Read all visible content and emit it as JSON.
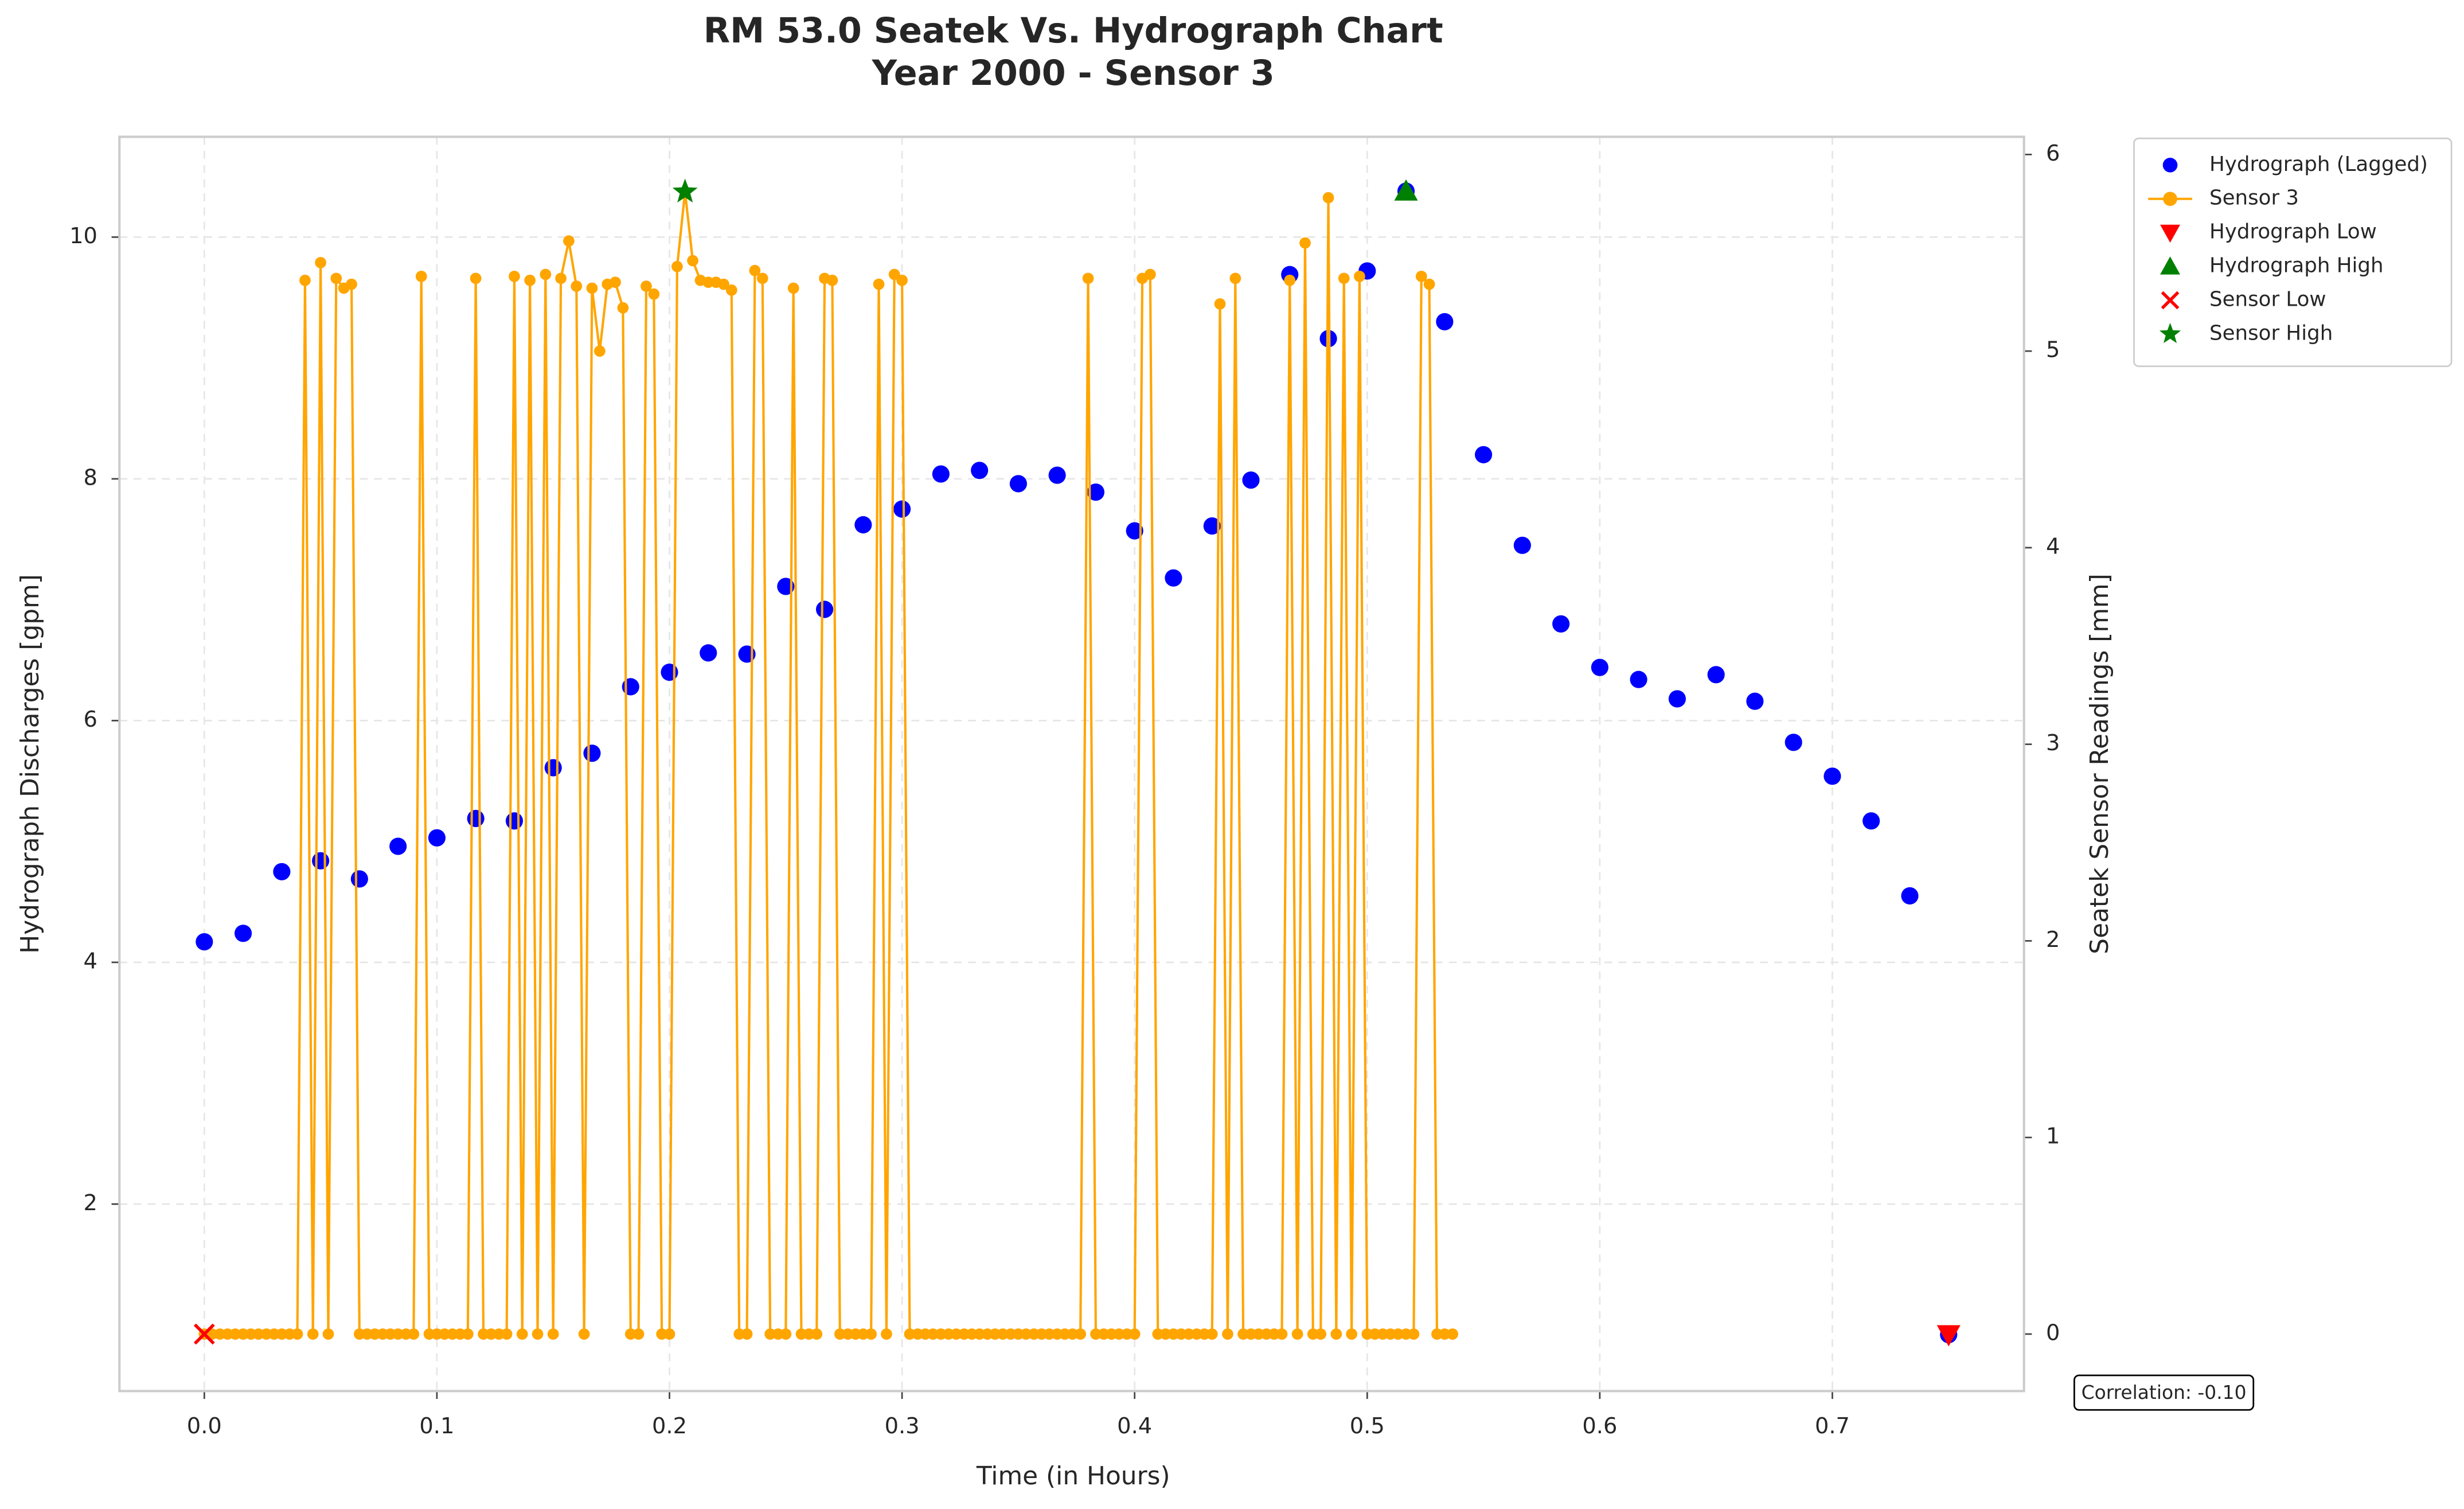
{
  "chart_data": {
    "type": "line",
    "title": "RM 53.0 Seatek Vs. Hydrograph Chart",
    "subtitle": "Year 2000 - Sensor 3",
    "x_label": "Time (in Hours)",
    "y_label": "Hydrograph Discharges [gpm]",
    "y2_label": "Seatek Sensor Readings [mm]",
    "annotation": "Correlation: -0.10",
    "xlim": [
      -0.0365,
      0.7824
    ],
    "ylim": [
      0.453,
      10.83
    ],
    "y2lim": [
      -0.29,
      6.09
    ],
    "xticks": [
      {
        "value": 0,
        "label": "0.0"
      },
      0.1,
      0.2,
      0.3,
      0.4,
      0.5,
      0.6,
      0.7
    ],
    "yticks": [
      2,
      4,
      6,
      8,
      10
    ],
    "y2ticks": [
      0,
      1,
      2,
      3,
      4,
      5,
      6
    ],
    "grid": true,
    "legend": "outside-right",
    "series": [
      {
        "name": "Hydrograph (Lagged)",
        "color": "#0000ff",
        "marker": "circle",
        "line": false,
        "axis": "y",
        "x": [
          0,
          0.0167,
          0.0333,
          0.05,
          0.0667,
          0.0833,
          0.1,
          0.1167,
          0.1333,
          0.15,
          0.1667,
          0.1833,
          0.2,
          0.2167,
          0.2333,
          0.25,
          0.2667,
          0.2833,
          0.3,
          0.3167,
          0.3333,
          0.35,
          0.3667,
          0.3833,
          0.4,
          0.4167,
          0.4333,
          0.45,
          0.4667,
          0.4833,
          0.5,
          0.5167,
          0.5333,
          0.55,
          0.5667,
          0.5833,
          0.6,
          0.6167,
          0.6333,
          0.65,
          0.6667,
          0.6833,
          0.7,
          0.7167,
          0.7333,
          0.75
        ],
        "values": [
          4.17,
          4.24,
          4.75,
          4.84,
          4.69,
          4.96,
          5.03,
          5.19,
          5.17,
          5.61,
          5.73,
          6.28,
          6.4,
          6.56,
          6.55,
          7.11,
          6.92,
          7.62,
          7.75,
          8.04,
          8.07,
          7.96,
          8.03,
          7.89,
          7.57,
          7.18,
          7.61,
          7.99,
          9.69,
          9.16,
          9.72,
          10.38,
          9.3,
          8.2,
          7.45,
          6.8,
          6.44,
          6.34,
          6.18,
          6.38,
          6.16,
          5.82,
          5.54,
          5.17,
          4.55,
          0.92
        ]
      },
      {
        "name": "Sensor 3",
        "color": "#ffa500",
        "marker": "circle",
        "line": true,
        "axis": "y2",
        "x": [
          0,
          0.0033,
          0.0067,
          0.01,
          0.0133,
          0.0167,
          0.02,
          0.0233,
          0.0267,
          0.03,
          0.0333,
          0.0367,
          0.04,
          0.0433,
          0.0467,
          0.05,
          0.0533,
          0.0567,
          0.06,
          0.0633,
          0.0667,
          0.07,
          0.0733,
          0.0767,
          0.08,
          0.0833,
          0.0867,
          0.09,
          0.0933,
          0.0967,
          0.1,
          0.1033,
          0.1067,
          0.11,
          0.1133,
          0.1167,
          0.12,
          0.1233,
          0.1267,
          0.13,
          0.1333,
          0.1367,
          0.14,
          0.1433,
          0.1467,
          0.15,
          0.1533,
          0.1567,
          0.16,
          0.1633,
          0.1667,
          0.17,
          0.1733,
          0.1767,
          0.18,
          0.1833,
          0.1867,
          0.19,
          0.1933,
          0.1967,
          0.2,
          0.2033,
          0.2067,
          0.21,
          0.2133,
          0.2167,
          0.22,
          0.2233,
          0.2267,
          0.23,
          0.2333,
          0.2367,
          0.24,
          0.2433,
          0.2467,
          0.25,
          0.2533,
          0.2567,
          0.26,
          0.2633,
          0.2667,
          0.27,
          0.2733,
          0.2767,
          0.28,
          0.2833,
          0.2867,
          0.29,
          0.2933,
          0.2967,
          0.3,
          0.3033,
          0.3067,
          0.31,
          0.3133,
          0.3167,
          0.32,
          0.3233,
          0.3267,
          0.33,
          0.3333,
          0.3367,
          0.34,
          0.3433,
          0.3467,
          0.35,
          0.3533,
          0.3567,
          0.36,
          0.3633,
          0.3667,
          0.37,
          0.3733,
          0.3767,
          0.38,
          0.3833,
          0.3867,
          0.39,
          0.3933,
          0.3967,
          0.4,
          0.4033,
          0.4067,
          0.41,
          0.4133,
          0.4167,
          0.42,
          0.4233,
          0.4267,
          0.43,
          0.4333,
          0.4367,
          0.44,
          0.4433,
          0.4467,
          0.45,
          0.4533,
          0.4567,
          0.46,
          0.4633,
          0.4667,
          0.47,
          0.4733,
          0.4767,
          0.48,
          0.4833,
          0.4867,
          0.49,
          0.4933,
          0.4967,
          0.5,
          0.5033,
          0.5067,
          0.51,
          0.5133,
          0.5167,
          0.52,
          0.5233,
          0.5267,
          0.53,
          0.5333,
          0.5367
        ],
        "values": [
          0,
          0,
          0,
          0,
          0,
          0,
          0,
          0,
          0,
          0,
          0,
          0,
          0,
          5.36,
          0,
          5.45,
          0,
          5.37,
          5.32,
          5.34,
          0,
          0,
          0,
          0,
          0,
          0,
          0,
          0,
          5.38,
          0,
          0,
          0,
          0,
          0,
          0,
          5.37,
          0,
          0,
          0,
          0,
          5.38,
          0,
          5.36,
          0,
          5.39,
          0,
          5.37,
          5.56,
          5.33,
          0,
          5.32,
          5.0,
          5.34,
          5.35,
          5.22,
          0,
          0,
          5.33,
          5.29,
          0,
          0,
          5.43,
          5.81,
          5.46,
          5.36,
          5.35,
          5.35,
          5.34,
          5.31,
          0,
          0,
          5.41,
          5.37,
          0,
          0,
          0,
          5.32,
          0,
          0,
          0,
          5.37,
          5.36,
          0,
          0,
          0,
          0,
          0,
          5.34,
          0,
          5.39,
          5.36,
          0,
          0,
          0,
          0,
          0,
          0,
          0,
          0,
          0,
          0,
          0,
          0,
          0,
          0,
          0,
          0,
          0,
          0,
          0,
          0,
          0,
          0,
          0,
          5.37,
          0,
          0,
          0,
          0,
          0,
          0,
          5.37,
          5.39,
          0,
          0,
          0,
          0,
          0,
          0,
          0,
          0,
          5.24,
          0,
          5.37,
          0,
          0,
          0,
          0,
          0,
          0,
          5.36,
          0,
          5.55,
          0,
          0,
          5.78,
          0,
          5.37,
          0,
          5.38,
          0,
          0,
          0,
          0,
          0,
          0,
          0,
          5.38,
          5.34,
          0,
          0,
          0
        ]
      },
      {
        "name": "Hydrograph Low",
        "color": "#ff0000",
        "marker": "triangle-down",
        "line": false,
        "axis": "y",
        "x": [
          0.75
        ],
        "values": [
          0.92
        ]
      },
      {
        "name": "Hydrograph High",
        "color": "#008000",
        "marker": "triangle-up",
        "line": false,
        "axis": "y",
        "x": [
          0.5167
        ],
        "values": [
          10.38
        ]
      },
      {
        "name": "Sensor Low",
        "color": "#ff0000",
        "marker": "x",
        "line": false,
        "axis": "y2",
        "x": [
          0
        ],
        "values": [
          0
        ]
      },
      {
        "name": "Sensor High",
        "color": "#008000",
        "marker": "star",
        "line": false,
        "axis": "y2",
        "x": [
          0.2067
        ],
        "values": [
          5.81
        ]
      }
    ]
  }
}
